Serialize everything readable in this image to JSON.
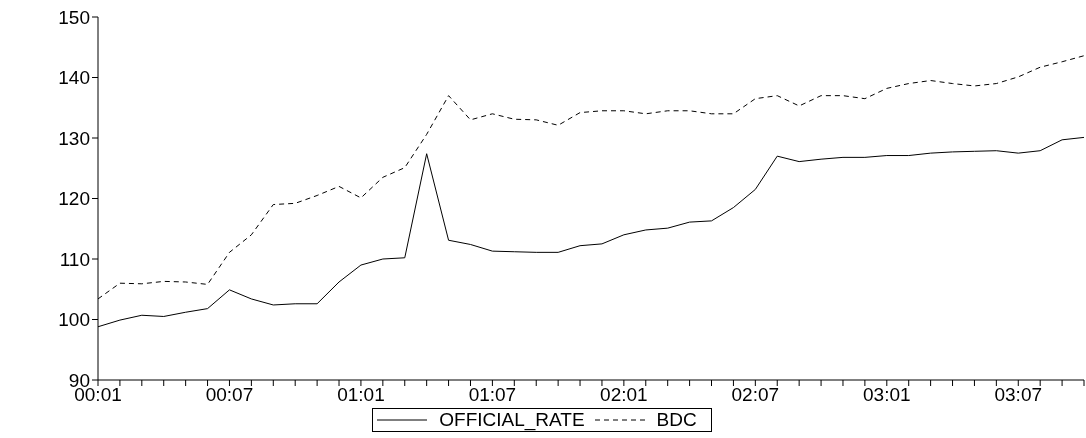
{
  "chart_data": {
    "type": "line",
    "categories": [
      "00:01",
      null,
      null,
      null,
      null,
      null,
      "00:07",
      null,
      null,
      null,
      null,
      null,
      "01:01",
      null,
      null,
      null,
      null,
      null,
      "01:07",
      null,
      null,
      null,
      null,
      null,
      "02:01",
      null,
      null,
      null,
      null,
      null,
      "02:07",
      null,
      null,
      null,
      null,
      null,
      "03:01",
      null,
      null,
      null,
      null,
      null,
      "03:07",
      null,
      null,
      null
    ],
    "series": [
      {
        "name": "OFFICIAL_RATE",
        "color": "#000000",
        "line_style": "solid",
        "values": [
          98.8,
          99.9,
          100.7,
          100.5,
          101.2,
          101.8,
          104.9,
          103.4,
          102.4,
          102.6,
          102.6,
          106.2,
          109.0,
          110.0,
          110.2,
          127.4,
          113.1,
          112.4,
          111.3,
          111.2,
          111.1,
          111.1,
          112.2,
          112.5,
          114.0,
          114.8,
          115.1,
          116.1,
          116.3,
          118.5,
          121.5,
          127.0,
          126.1,
          126.5,
          126.8,
          126.8,
          127.1,
          127.1,
          127.5,
          127.7,
          127.8,
          127.9,
          127.5,
          127.9,
          129.7,
          130.1
        ]
      },
      {
        "name": "BDC",
        "color": "#000000",
        "line_style": "dashed",
        "values": [
          103.4,
          106.0,
          105.9,
          106.3,
          106.2,
          105.8,
          111.1,
          114.0,
          119.0,
          119.2,
          120.5,
          122.0,
          120.1,
          123.5,
          125.1,
          130.6,
          137.0,
          133.0,
          134.0,
          133.1,
          133.0,
          132.1,
          134.2,
          134.5,
          134.5,
          134.0,
          134.5,
          134.5,
          134.0,
          134.0,
          136.5,
          137.0,
          135.3,
          137.0,
          137.0,
          136.5,
          138.2,
          139.0,
          139.5,
          139.0,
          138.6,
          139.0,
          140.1,
          141.7,
          142.6,
          143.6
        ]
      }
    ],
    "ylim": [
      90,
      150
    ],
    "yticks": [
      90,
      100,
      110,
      120,
      130,
      140,
      150
    ],
    "grid": false,
    "legend": "bottom",
    "marker": "none"
  }
}
